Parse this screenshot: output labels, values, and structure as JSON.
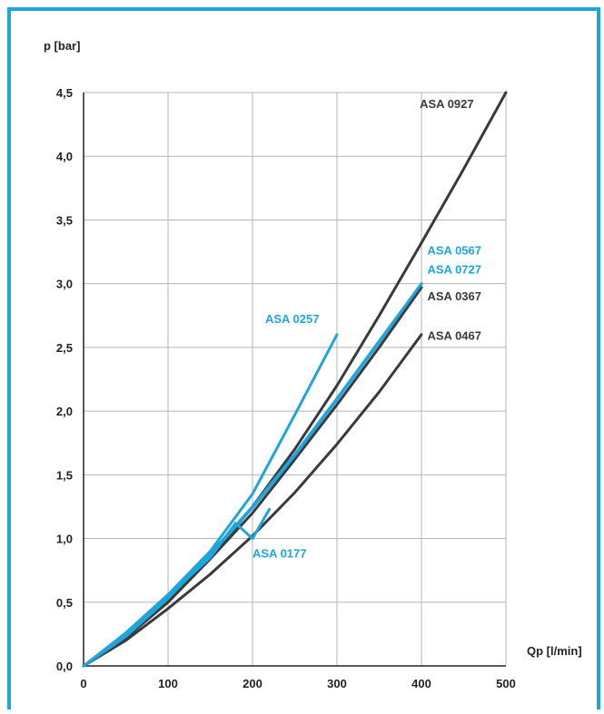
{
  "chart_data": {
    "type": "line",
    "title": "",
    "xlabel": "Qp [l/min]",
    "ylabel": "p [bar]",
    "xlim": [
      0,
      500
    ],
    "ylim": [
      0,
      4.5
    ],
    "grid": true,
    "x_ticks": [
      "0",
      "100",
      "200",
      "300",
      "400",
      "500"
    ],
    "y_ticks": [
      "0,0",
      "0,5",
      "1,0",
      "1,5",
      "2,0",
      "2,5",
      "3,0",
      "3,5",
      "4,0",
      "4,5"
    ],
    "colors": {
      "dark": "#3a3a3c",
      "blue": "#1ea6dc",
      "grid": "#b5b5b5",
      "frame": "#1ea6dc"
    },
    "series": [
      {
        "name": "ASA 0927",
        "color": "dark",
        "points": [
          [
            0,
            0
          ],
          [
            50,
            0.22
          ],
          [
            100,
            0.5
          ],
          [
            150,
            0.84
          ],
          [
            200,
            1.25
          ],
          [
            250,
            1.7
          ],
          [
            300,
            2.2
          ],
          [
            350,
            2.75
          ],
          [
            400,
            3.32
          ],
          [
            450,
            3.9
          ],
          [
            500,
            4.5
          ]
        ]
      },
      {
        "name": "ASA 0467",
        "color": "dark",
        "points": [
          [
            0,
            0
          ],
          [
            50,
            0.2
          ],
          [
            100,
            0.45
          ],
          [
            150,
            0.72
          ],
          [
            200,
            1.02
          ],
          [
            250,
            1.36
          ],
          [
            300,
            1.74
          ],
          [
            350,
            2.15
          ],
          [
            400,
            2.6
          ]
        ]
      },
      {
        "name": "ASA 0367",
        "color": "dark",
        "points": [
          [
            0,
            0
          ],
          [
            50,
            0.23
          ],
          [
            100,
            0.52
          ],
          [
            150,
            0.84
          ],
          [
            200,
            1.2
          ],
          [
            250,
            1.62
          ],
          [
            300,
            2.05
          ],
          [
            350,
            2.5
          ],
          [
            400,
            2.97
          ]
        ]
      },
      {
        "name": "ASA 0567",
        "color": "blue",
        "points": [
          [
            0,
            0
          ],
          [
            50,
            0.24
          ],
          [
            100,
            0.54
          ],
          [
            150,
            0.88
          ],
          [
            200,
            1.25
          ],
          [
            250,
            1.66
          ],
          [
            300,
            2.1
          ],
          [
            350,
            2.55
          ],
          [
            400,
            3.0
          ]
        ]
      },
      {
        "name": "ASA 0727",
        "color": "blue",
        "points": [
          [
            0,
            0
          ],
          [
            50,
            0.23
          ],
          [
            100,
            0.53
          ],
          [
            150,
            0.87
          ],
          [
            200,
            1.24
          ],
          [
            250,
            1.65
          ],
          [
            300,
            2.09
          ],
          [
            350,
            2.54
          ],
          [
            400,
            3.0
          ]
        ]
      },
      {
        "name": "ASA 0257",
        "color": "blue",
        "points": [
          [
            0,
            0
          ],
          [
            50,
            0.26
          ],
          [
            100,
            0.56
          ],
          [
            150,
            0.9
          ],
          [
            200,
            1.35
          ],
          [
            250,
            1.97
          ],
          [
            300,
            2.6
          ]
        ]
      },
      {
        "name": "ASA 0177",
        "color": "blue",
        "points": [
          [
            0,
            0
          ],
          [
            50,
            0.25
          ],
          [
            100,
            0.55
          ],
          [
            150,
            0.85
          ],
          [
            180,
            1.12
          ],
          [
            200,
            1.0
          ],
          [
            220,
            1.23
          ]
        ]
      }
    ],
    "annotations": [
      {
        "text": "ASA 0927",
        "x": 398,
        "y": 4.38,
        "color": "dark"
      },
      {
        "text": "ASA 0567",
        "x": 407,
        "y": 3.23,
        "color": "blue"
      },
      {
        "text": "ASA 0727",
        "x": 407,
        "y": 3.08,
        "color": "blue"
      },
      {
        "text": "ASA 0367",
        "x": 407,
        "y": 2.87,
        "color": "dark"
      },
      {
        "text": "ASA 0257",
        "x": 215,
        "y": 2.69,
        "color": "blue"
      },
      {
        "text": "ASA 0467",
        "x": 407,
        "y": 2.56,
        "color": "dark"
      },
      {
        "text": "ASA 0177",
        "x": 200,
        "y": 0.85,
        "color": "blue"
      }
    ]
  }
}
